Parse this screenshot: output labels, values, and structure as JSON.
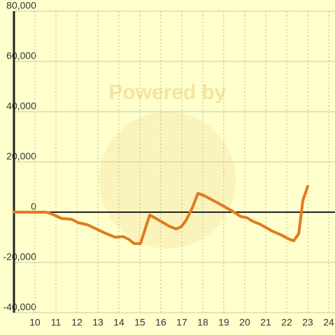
{
  "chart_data": {
    "type": "line",
    "watermark": "Powered by",
    "x": [
      9.0,
      10.53,
      10.83,
      11.27,
      11.73,
      12.07,
      12.5,
      13.33,
      13.83,
      14.2,
      14.47,
      14.73,
      15.03,
      15.47,
      15.93,
      16.4,
      16.73,
      16.97,
      17.2,
      17.5,
      17.77,
      18.03,
      18.73,
      19.37,
      19.8,
      20.1,
      20.37,
      20.7,
      21.3,
      21.77,
      22.07,
      22.33,
      22.57,
      22.77,
      23.0
    ],
    "series": [
      {
        "color": "#e07b20",
        "values": [
          0,
          0,
          -800,
          -2500,
          -2800,
          -4200,
          -5000,
          -8300,
          -10000,
          -9700,
          -10800,
          -12500,
          -12500,
          -1100,
          -3300,
          -5600,
          -6700,
          -5800,
          -3300,
          1700,
          7500,
          6700,
          3600,
          600,
          -1700,
          -2200,
          -3600,
          -4700,
          -7500,
          -9200,
          -10600,
          -11400,
          -8600,
          4700,
          10300
        ]
      }
    ],
    "xlim": [
      9,
      24.3
    ],
    "xticks": [
      10,
      11,
      12,
      13,
      14,
      15,
      16,
      17,
      18,
      19,
      20,
      21,
      22,
      23,
      24
    ],
    "ylim": [
      -40000,
      80000
    ],
    "yticks": [
      {
        "value": -40000,
        "label": "-40,000"
      },
      {
        "value": -20000,
        "label": "-20,000"
      },
      0,
      {
        "value": 20000,
        "label": "20,000"
      },
      {
        "value": 40000,
        "label": "40,000"
      },
      {
        "value": 60000,
        "label": "60,000"
      },
      {
        "value": 80000,
        "label": "80,000"
      }
    ],
    "grid": true
  }
}
